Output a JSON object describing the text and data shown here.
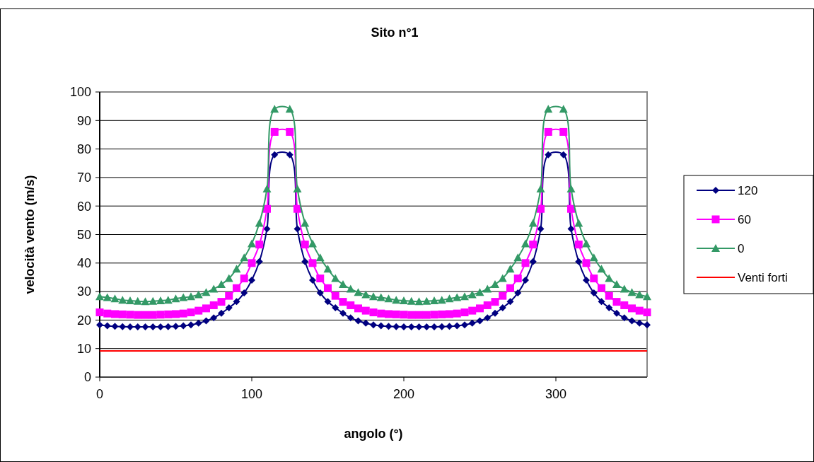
{
  "chart_data": {
    "type": "line",
    "title": "Sito n°1",
    "xlabel": "angolo (°)",
    "ylabel": "velocità vento (m/s)",
    "x": [
      0,
      5,
      10,
      15,
      20,
      25,
      30,
      35,
      40,
      45,
      50,
      55,
      60,
      65,
      70,
      75,
      80,
      85,
      90,
      95,
      100,
      105,
      110,
      115,
      125,
      130,
      135,
      140,
      145,
      150,
      155,
      160,
      165,
      170,
      175,
      180,
      185,
      190,
      195,
      200,
      205,
      210,
      215,
      220,
      225,
      230,
      235,
      240,
      245,
      250,
      255,
      260,
      265,
      270,
      275,
      280,
      285,
      290,
      295,
      305,
      310,
      315,
      320,
      325,
      330,
      335,
      340,
      345,
      350,
      355,
      360
    ],
    "xlim": [
      0,
      360
    ],
    "xticks": [
      0,
      100,
      200,
      300
    ],
    "ylim": [
      0,
      100
    ],
    "yticks": [
      0,
      10,
      20,
      30,
      40,
      50,
      60,
      70,
      80,
      90,
      100
    ],
    "grid": "y",
    "legend": "right",
    "series": [
      {
        "name": "120",
        "color": "#000080",
        "marker": "diamond",
        "values": [
          18.3,
          18.0,
          17.8,
          17.7,
          17.6,
          17.6,
          17.6,
          17.6,
          17.6,
          17.7,
          17.8,
          18.0,
          18.3,
          18.9,
          19.7,
          20.8,
          22.4,
          24.3,
          26.5,
          29.5,
          34,
          40.5,
          52,
          78,
          78,
          52,
          40.5,
          34,
          29.5,
          26.5,
          24.3,
          22.4,
          20.8,
          19.7,
          18.9,
          18.3,
          18.0,
          17.8,
          17.7,
          17.6,
          17.6,
          17.6,
          17.6,
          17.6,
          17.7,
          17.8,
          18.0,
          18.3,
          18.9,
          19.7,
          20.8,
          22.4,
          24.3,
          26.5,
          29.5,
          34,
          40.5,
          52,
          78,
          78,
          52,
          40.5,
          34,
          29.5,
          26.5,
          24.3,
          22.4,
          20.8,
          19.7,
          18.9,
          18.3
        ]
      },
      {
        "name": "60",
        "color": "#ff00ff",
        "marker": "square",
        "values": [
          22.7,
          22.3,
          22.1,
          22.0,
          21.9,
          21.8,
          21.8,
          21.8,
          21.9,
          22.0,
          22.1,
          22.3,
          22.7,
          23.3,
          24.1,
          25.2,
          26.4,
          28.5,
          31.2,
          34.6,
          40,
          46.5,
          59,
          86,
          86,
          59,
          46.5,
          40,
          34.6,
          31.2,
          28.5,
          26.4,
          25.2,
          24.1,
          23.3,
          22.7,
          22.3,
          22.1,
          22.0,
          21.9,
          21.8,
          21.8,
          21.8,
          21.9,
          22.0,
          22.1,
          22.3,
          22.7,
          23.3,
          24.1,
          25.2,
          26.4,
          28.5,
          31.2,
          34.6,
          40,
          46.5,
          59,
          86,
          86,
          59,
          46.5,
          40,
          34.6,
          31.2,
          28.5,
          26.4,
          25.2,
          24.1,
          23.3,
          22.7
        ]
      },
      {
        "name": "0",
        "color": "#339966",
        "marker": "triangle",
        "values": [
          28.2,
          27.9,
          27.5,
          27.0,
          26.8,
          26.6,
          26.5,
          26.6,
          26.8,
          27.0,
          27.5,
          27.9,
          28.2,
          28.9,
          29.7,
          30.9,
          32.5,
          34.6,
          37.9,
          41.9,
          46.8,
          54,
          66,
          94,
          94,
          66,
          54,
          46.8,
          41.9,
          37.9,
          34.6,
          32.5,
          30.9,
          29.7,
          28.9,
          28.2,
          27.9,
          27.5,
          27.0,
          26.8,
          26.6,
          26.5,
          26.6,
          26.8,
          27.0,
          27.5,
          27.9,
          28.2,
          28.9,
          29.7,
          30.9,
          32.5,
          34.6,
          37.9,
          41.9,
          46.8,
          54,
          66,
          94,
          94,
          66,
          54,
          46.8,
          41.9,
          37.9,
          34.6,
          32.5,
          30.9,
          29.7,
          28.9,
          28.2
        ]
      },
      {
        "name": "Venti forti",
        "color": "#ff0000",
        "marker": "none",
        "x": [
          0,
          360
        ],
        "values": [
          9.2,
          9.2
        ]
      }
    ]
  }
}
